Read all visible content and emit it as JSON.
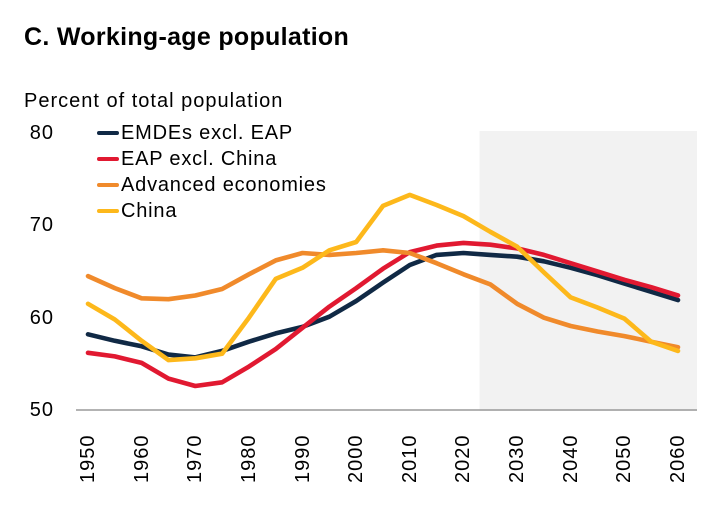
{
  "title": "C. Working-age population",
  "subtitle": "Percent of total population",
  "colors": {
    "forecast_shading": "#f2f2f2",
    "axis_line": "#9a9a9a",
    "text": "#000000"
  },
  "chart_data": {
    "type": "line",
    "title": "C. Working-age population",
    "ylabel_note": "Percent of total population",
    "xlabel": "",
    "ylabel": "",
    "grid": false,
    "legend_position": "top-left",
    "ylim": [
      50,
      80
    ],
    "yticks": [
      50,
      60,
      70,
      80
    ],
    "xticks": [
      1950,
      1960,
      1970,
      1980,
      1990,
      2000,
      2010,
      2020,
      2030,
      2040,
      2050,
      2060
    ],
    "forecast_start": 2023,
    "x": [
      1950,
      1955,
      1960,
      1965,
      1970,
      1975,
      1980,
      1985,
      1990,
      1995,
      2000,
      2005,
      2010,
      2015,
      2020,
      2025,
      2030,
      2035,
      2040,
      2045,
      2050,
      2055,
      2060
    ],
    "series": [
      {
        "name": "EMDEs excl. EAP",
        "color": "#102945",
        "values": [
          58.2,
          57.5,
          56.9,
          56.0,
          55.7,
          56.4,
          57.4,
          58.3,
          59.0,
          60.1,
          61.8,
          63.8,
          65.7,
          66.8,
          67.0,
          66.8,
          66.6,
          66.1,
          65.4,
          64.6,
          63.7,
          62.8,
          61.9
        ]
      },
      {
        "name": "EAP excl. China",
        "color": "#e11931",
        "values": [
          56.2,
          55.8,
          55.1,
          53.4,
          52.6,
          53.0,
          54.7,
          56.6,
          58.9,
          61.2,
          63.2,
          65.3,
          67.1,
          67.8,
          68.1,
          67.9,
          67.5,
          66.8,
          65.9,
          65.0,
          64.1,
          63.3,
          62.4
        ]
      },
      {
        "name": "Advanced economies",
        "color": "#f08a2b",
        "values": [
          64.5,
          63.2,
          62.1,
          62.0,
          62.4,
          63.1,
          64.7,
          66.2,
          67.0,
          66.8,
          67.0,
          67.3,
          67.0,
          65.9,
          64.7,
          63.6,
          61.5,
          60.0,
          59.1,
          58.5,
          58.0,
          57.4,
          56.8
        ]
      },
      {
        "name": "China",
        "color": "#fdb81b",
        "values": [
          61.5,
          59.8,
          57.5,
          55.4,
          55.6,
          56.1,
          60.0,
          64.2,
          65.4,
          67.3,
          68.2,
          72.1,
          73.3,
          72.2,
          71.0,
          69.3,
          67.7,
          64.9,
          62.2,
          61.1,
          59.9,
          57.4,
          56.4
        ]
      }
    ]
  }
}
